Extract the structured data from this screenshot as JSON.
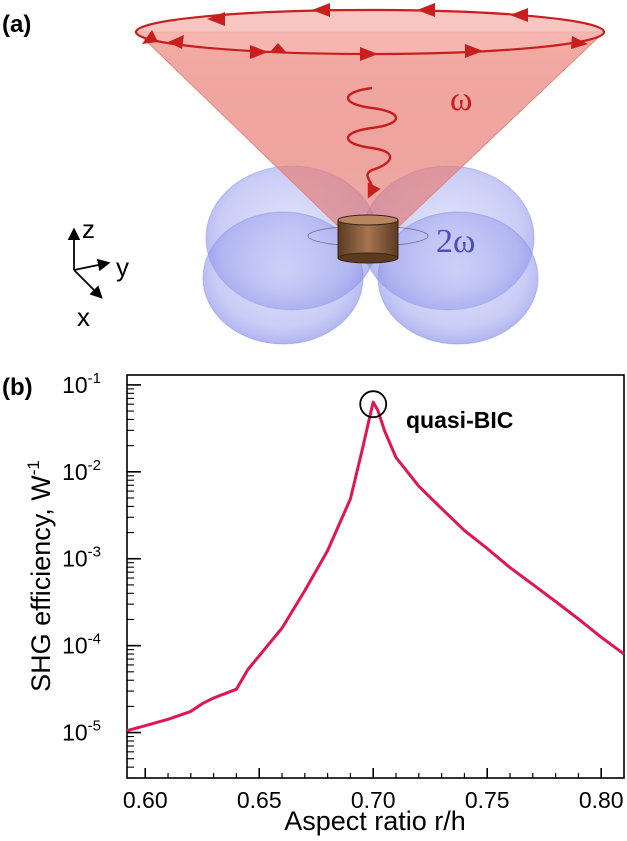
{
  "panel_a": {
    "label": "(a)",
    "omega_label": "ω",
    "two_omega_label": "2ω",
    "axes": {
      "z": "z",
      "y": "y",
      "x": "x"
    },
    "colors": {
      "beam": "#d9342b",
      "lobes": "#7f86e6",
      "disk": "#8a5a36"
    }
  },
  "panel_b": {
    "label": "(b)",
    "annotation": "quasi-BIC"
  },
  "chart_data": {
    "type": "line",
    "xlabel": "Aspect ratio r/h",
    "ylabel": "SHG efficiency, W",
    "ylabel_sup": "-1",
    "yscale": "log",
    "xlim": [
      0.592,
      0.81
    ],
    "ylim": [
      3e-06,
      0.13
    ],
    "x_ticks": [
      "0.60",
      "0.65",
      "0.70",
      "0.75",
      "0.80"
    ],
    "y_ticks": [
      {
        "base": "10",
        "exp": "-5"
      },
      {
        "base": "10",
        "exp": "-4"
      },
      {
        "base": "10",
        "exp": "-3"
      },
      {
        "base": "10",
        "exp": "-2"
      },
      {
        "base": "10",
        "exp": "-1"
      }
    ],
    "line_color": "#e0174f",
    "series": [
      {
        "x": [
          0.592,
          0.6,
          0.61,
          0.62,
          0.625,
          0.63,
          0.64,
          0.645,
          0.65,
          0.66,
          0.67,
          0.68,
          0.69,
          0.695,
          0.698,
          0.7,
          0.702,
          0.705,
          0.71,
          0.72,
          0.73,
          0.74,
          0.75,
          0.76,
          0.77,
          0.78,
          0.79,
          0.8,
          0.81
        ],
        "y": [
          1.05e-05,
          1.2e-05,
          1.42e-05,
          1.75e-05,
          2.15e-05,
          2.5e-05,
          3.15e-05,
          5.3e-05,
          7.65e-05,
          0.000159,
          0.00043,
          0.00124,
          0.00488,
          0.0171,
          0.038,
          0.0634,
          0.0511,
          0.0296,
          0.0146,
          0.00684,
          0.00377,
          0.00212,
          0.00131,
          0.000791,
          0.000506,
          0.000322,
          0.000203,
          0.000125,
          8e-05
        ]
      }
    ],
    "peak": {
      "x": 0.7,
      "y": 0.06
    }
  }
}
